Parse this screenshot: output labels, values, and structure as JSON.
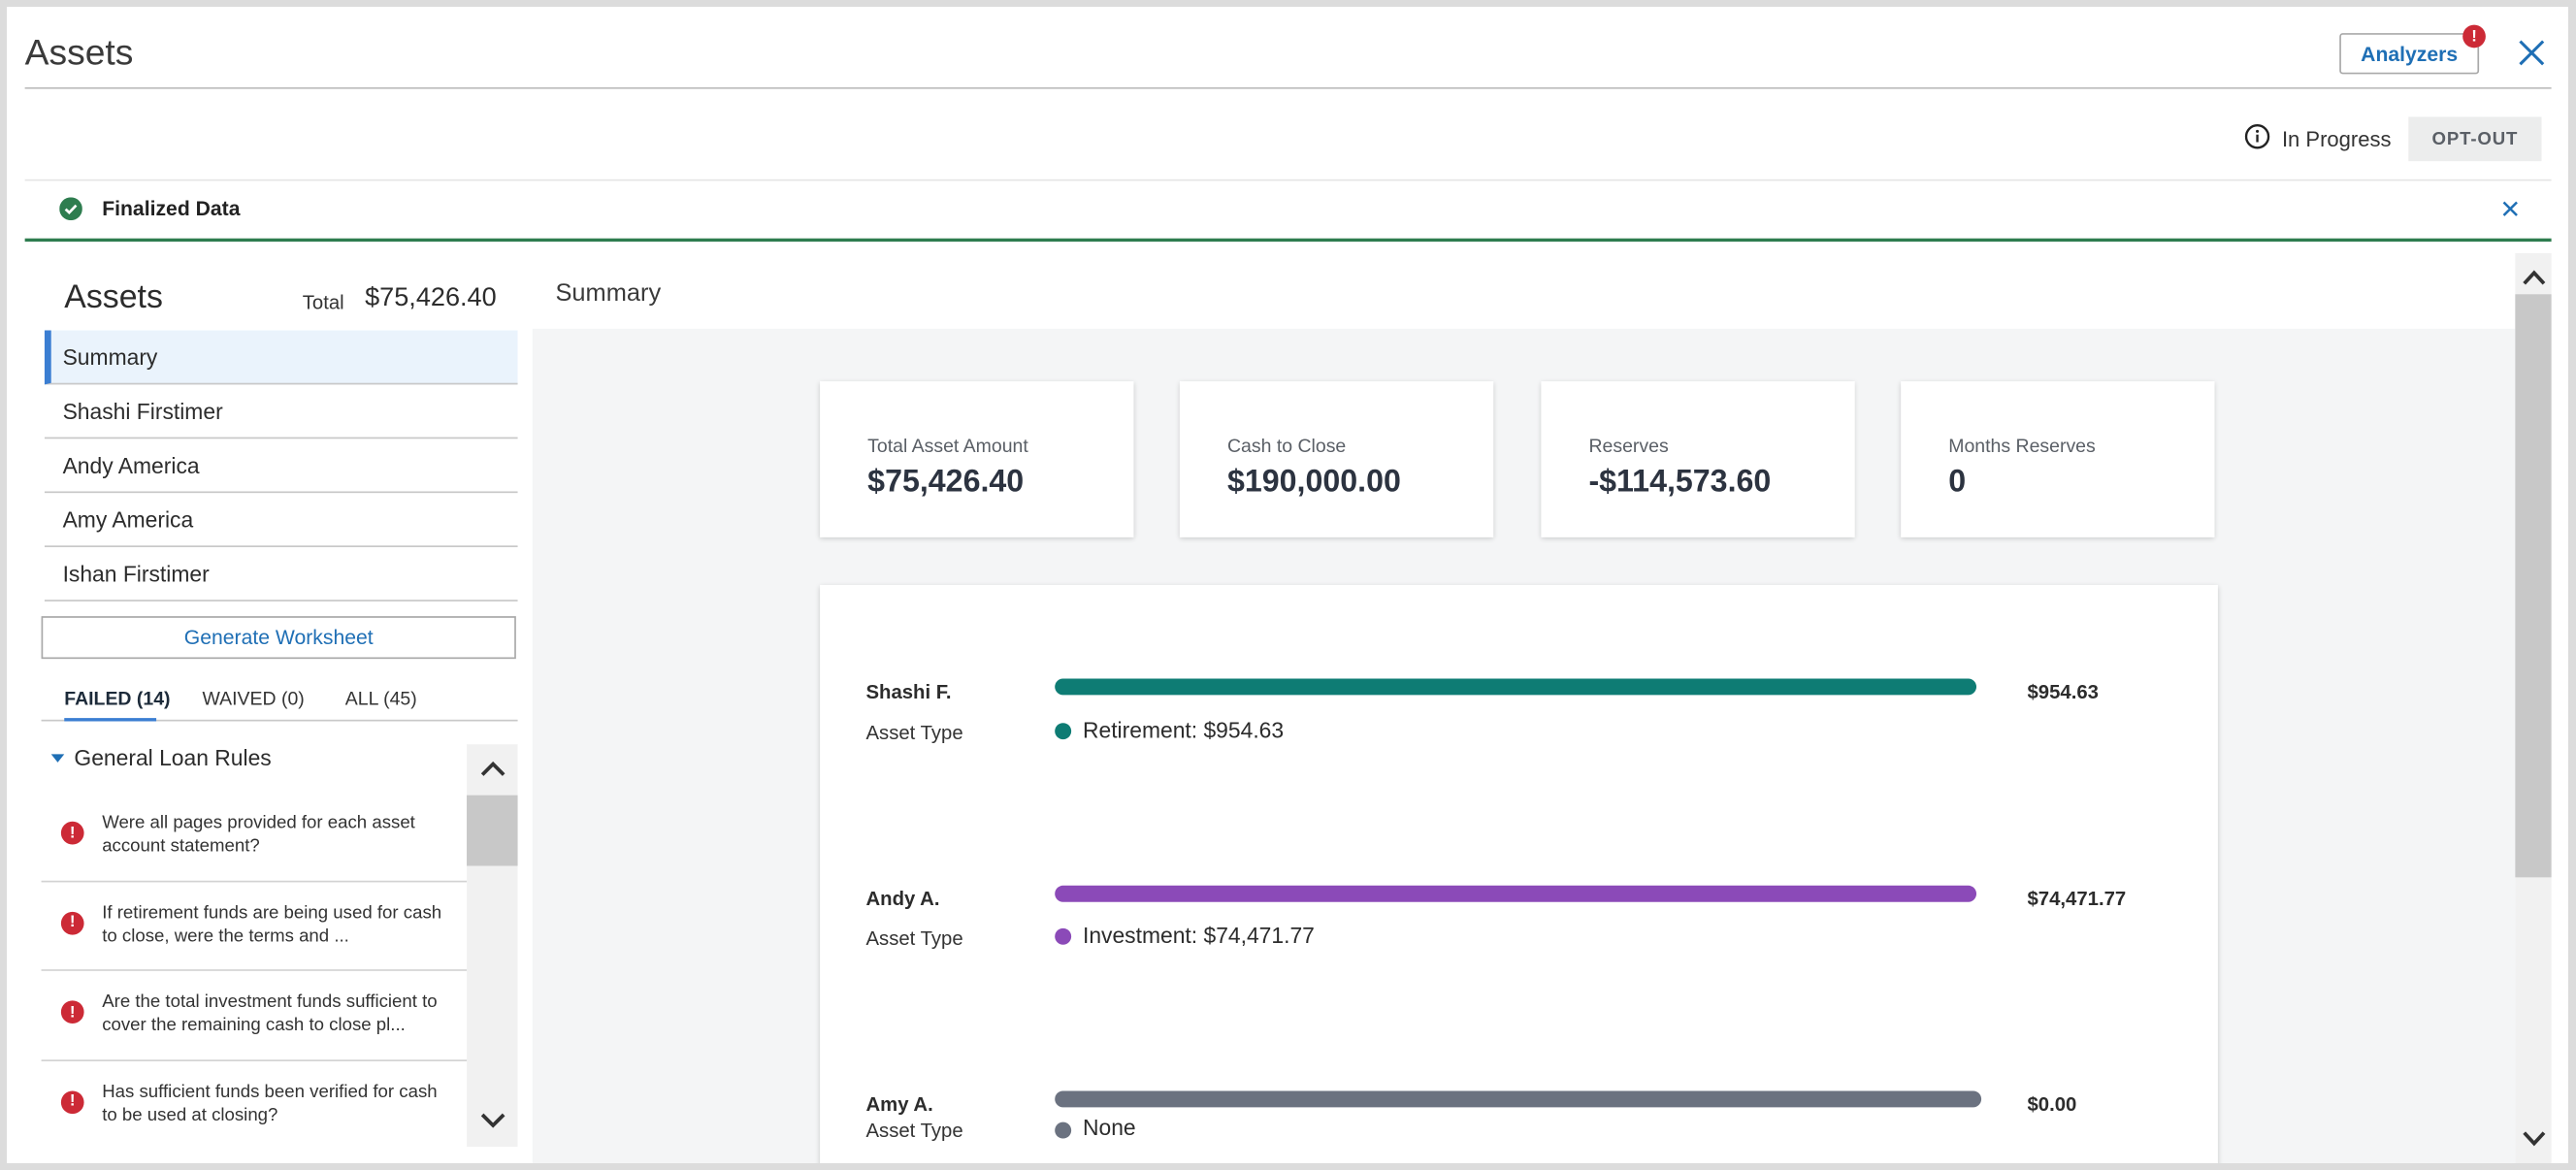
{
  "header": {
    "title": "Assets",
    "analyzers_label": "Analyzers",
    "analyzers_badge": "!"
  },
  "status": {
    "text": "In Progress",
    "opt_out_label": "OPT-OUT"
  },
  "banner": {
    "text": "Finalized Data"
  },
  "sidebar": {
    "heading": "Assets",
    "total_label": "Total",
    "total_value": "$75,426.40",
    "items": [
      {
        "label": "Summary",
        "active": true
      },
      {
        "label": "Shashi Firstimer"
      },
      {
        "label": "Andy America"
      },
      {
        "label": "Amy America"
      },
      {
        "label": "Ishan Firstimer"
      }
    ],
    "generate_label": "Generate Worksheet",
    "tabs": [
      {
        "label": "FAILED (14)",
        "active": true
      },
      {
        "label": "WAIVED (0)"
      },
      {
        "label": "ALL (45)"
      }
    ],
    "rules_group": "General Loan Rules",
    "rules": [
      {
        "text": "Were all pages provided for each asset account statement?"
      },
      {
        "text": "If retirement funds are being used for cash to close, were the terms and ..."
      },
      {
        "text": "Are the total investment funds sufficient to cover the remaining cash to close pl..."
      },
      {
        "text": "Has sufficient funds been verified for cash to be used at closing?"
      }
    ]
  },
  "main": {
    "title": "Summary",
    "cards": [
      {
        "label": "Total Asset Amount",
        "value": "$75,426.40"
      },
      {
        "label": "Cash to Close",
        "value": "$190,000.00"
      },
      {
        "label": "Reserves",
        "value": "-$114,573.60"
      },
      {
        "label": "Months Reserves",
        "value": "0"
      }
    ],
    "borrowers": [
      {
        "name": "Shashi F.",
        "asset_type_label": "Asset Type",
        "amount": "$954.63",
        "detail": "Retirement: $954.63",
        "color": "#0e7c74"
      },
      {
        "name": "Andy A.",
        "asset_type_label": "Asset Type",
        "amount": "$74,471.77",
        "detail": "Investment: $74,471.77",
        "color": "#8b4ab8"
      },
      {
        "name": "Amy A.",
        "asset_type_label": "Asset Type",
        "amount": "$0.00",
        "detail": "None",
        "color": "#6b7280"
      }
    ]
  },
  "colors": {
    "accent": "#1f6fb5",
    "success": "#2e7d4f",
    "error": "#cc2a36"
  }
}
